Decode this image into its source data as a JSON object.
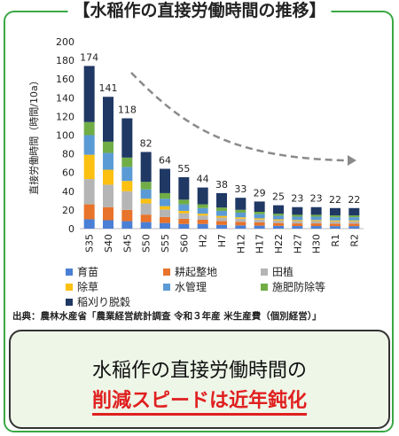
{
  "title": "【水稲作の直接労働時間の推移】",
  "chart_data": {
    "type": "bar",
    "stacked": true,
    "ylabel": "直接労働時間（時間/10a）",
    "ylim": [
      0,
      200
    ],
    "yticks": [
      0,
      20,
      40,
      60,
      80,
      100,
      120,
      140,
      160,
      180,
      200
    ],
    "categories": [
      "S35",
      "S40",
      "S45",
      "S50",
      "S55",
      "S60",
      "H2",
      "H7",
      "H12",
      "H17",
      "H22",
      "H27",
      "H30",
      "R1",
      "R2"
    ],
    "totals": [
      174,
      141,
      118,
      82,
      64,
      55,
      44,
      38,
      33,
      29,
      25,
      23,
      23,
      22,
      22
    ],
    "series": [
      {
        "name": "育苗",
        "color": "#4a7fd6",
        "values": [
          10,
          9,
          8,
          7,
          6,
          5,
          5,
          4,
          3.5,
          3.2,
          3,
          2.8,
          2.8,
          2.7,
          2.7
        ]
      },
      {
        "name": "耕起整地",
        "color": "#e8732a",
        "values": [
          16,
          14,
          12,
          8,
          6.5,
          5.5,
          4.5,
          4,
          3.8,
          3.5,
          3,
          2.8,
          2.8,
          2.7,
          2.7
        ]
      },
      {
        "name": "田植",
        "color": "#b5b5b5",
        "values": [
          27,
          24,
          20,
          12,
          8,
          6,
          4.5,
          3.8,
          3.3,
          3,
          2.7,
          2.5,
          2.5,
          2.4,
          2.4
        ]
      },
      {
        "name": "除草",
        "color": "#fcc010",
        "values": [
          26,
          16,
          11,
          5,
          3.5,
          2.5,
          2,
          1.8,
          1.5,
          1.3,
          1.2,
          1.1,
          1.1,
          1,
          1
        ]
      },
      {
        "name": "水管理",
        "color": "#5b9bd5",
        "values": [
          21,
          18,
          15,
          10,
          8,
          7,
          6,
          5.4,
          5,
          4.5,
          4,
          3.6,
          3.6,
          3.4,
          3.4
        ]
      },
      {
        "name": "施肥防除等",
        "color": "#70ad47",
        "values": [
          14,
          12,
          10,
          8,
          6,
          5,
          4,
          3.5,
          3,
          2.5,
          2.1,
          2,
          2,
          1.9,
          1.9
        ]
      },
      {
        "name": "稲刈り脱穀",
        "color": "#203864",
        "values": [
          60,
          48,
          42,
          32,
          26,
          24,
          18,
          15.5,
          12.9,
          11,
          9,
          8.2,
          8.2,
          7.9,
          7.9
        ]
      }
    ]
  },
  "source_text": "出典：農林水産省「農業経営統計調査 令和３年産 米生産費（個別経営）」",
  "callout": {
    "line1": "水稲作の直接労働時間の",
    "line2": "削減スピードは近年鈍化"
  },
  "colors": {
    "frame": "#3aa845",
    "callout_bg": "#eef6e8",
    "emphasis": "#e02020",
    "arrow": "#8a8a8a"
  }
}
